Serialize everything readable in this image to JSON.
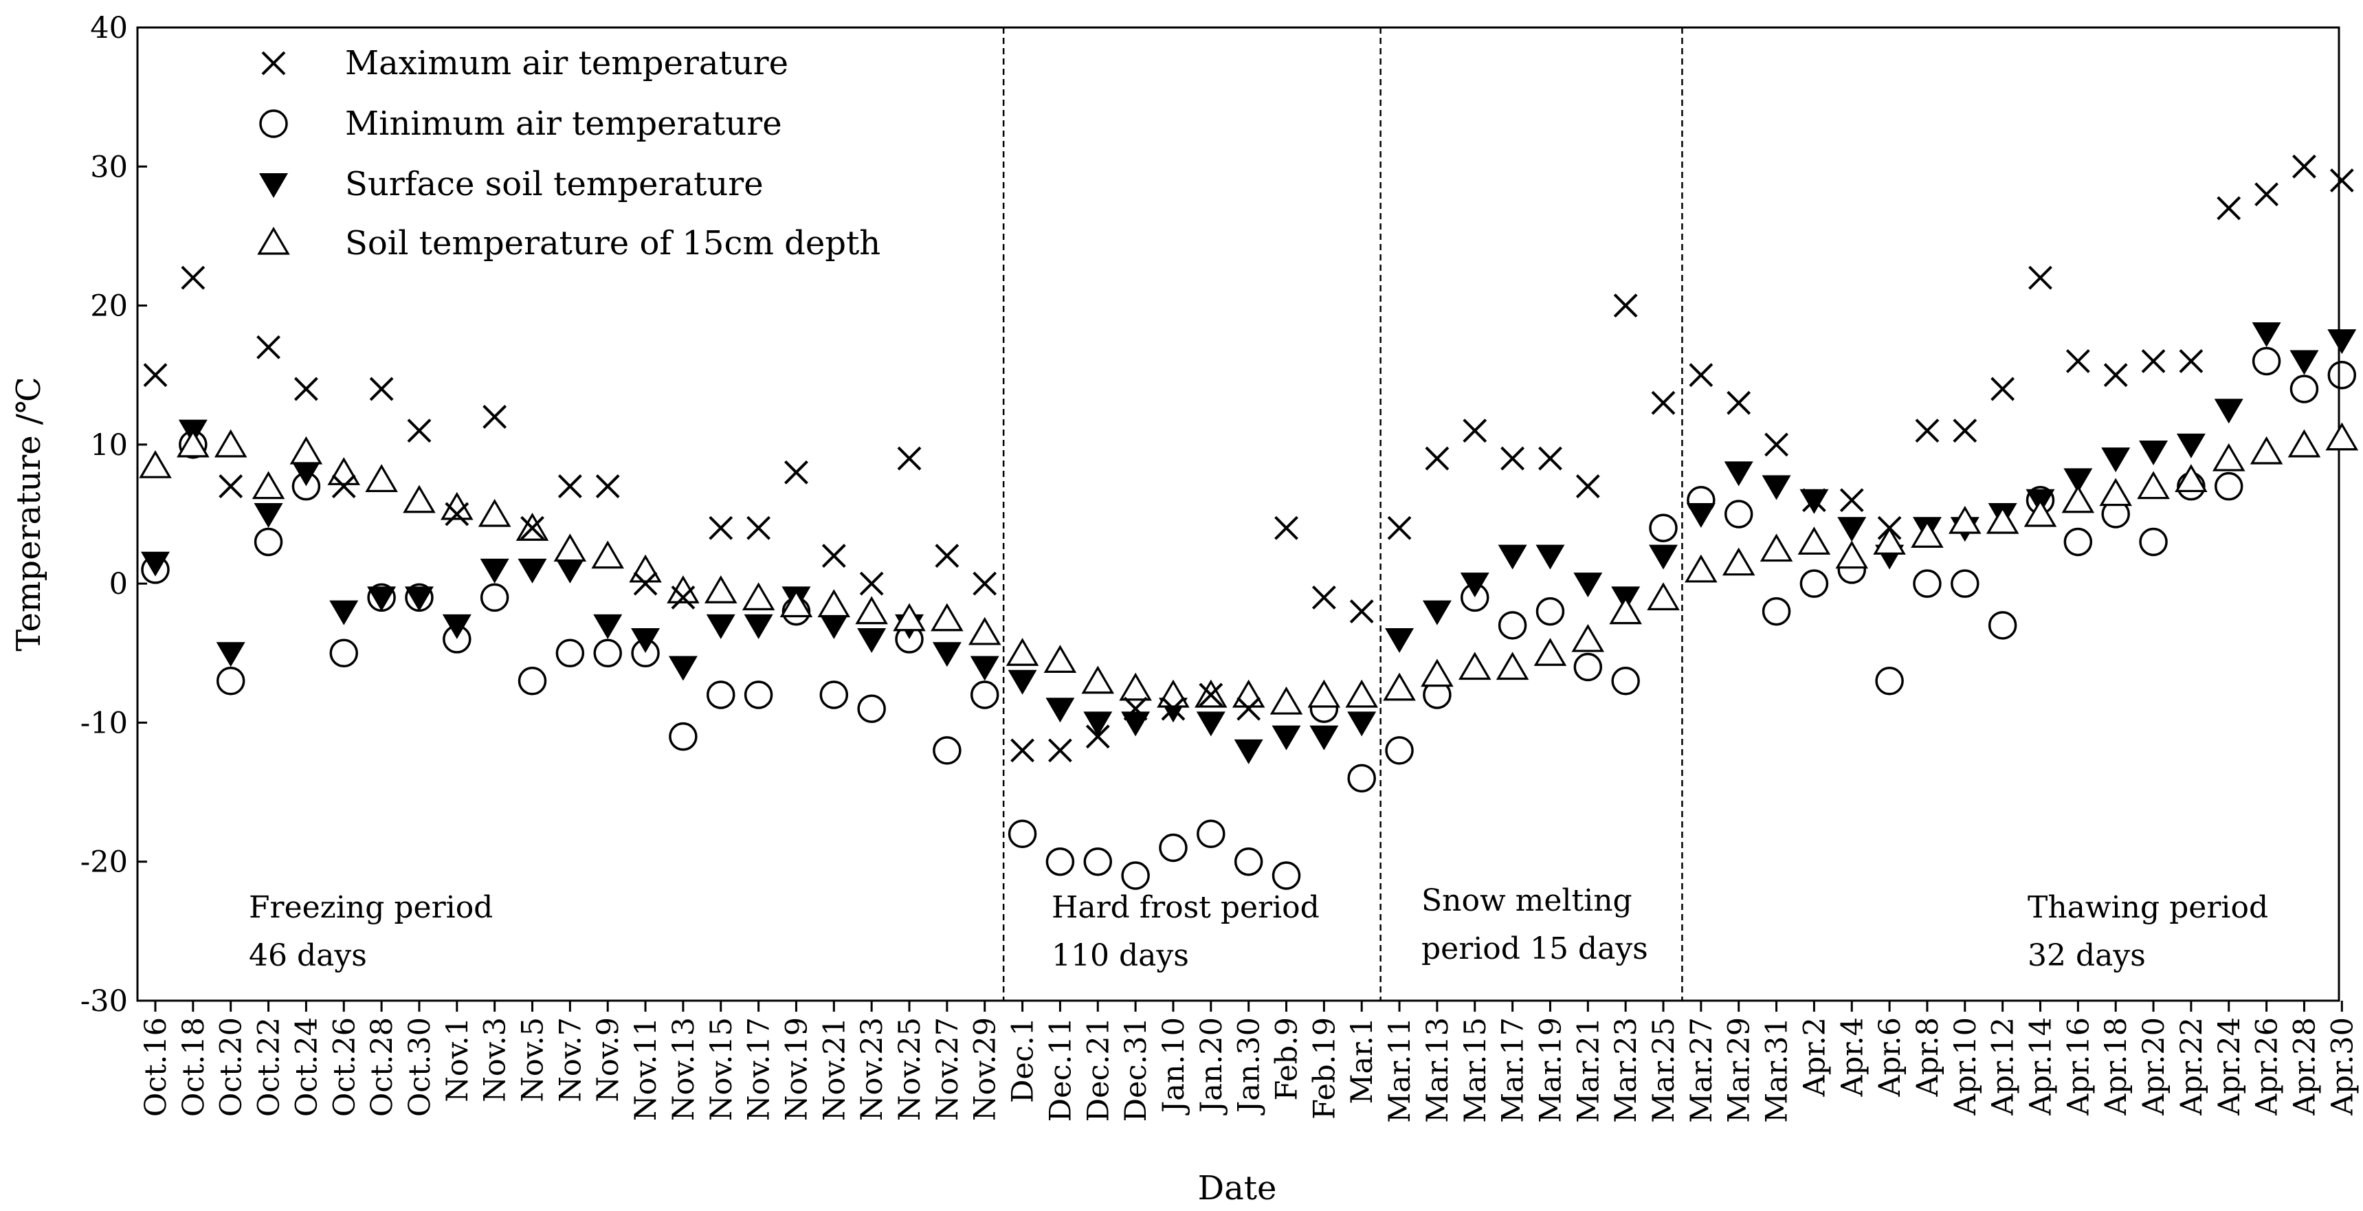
{
  "chart_data": {
    "type": "scatter",
    "xlabel": "Date",
    "ylabel": "Temperature /℃",
    "ylim": [
      -30,
      40
    ],
    "yticks": [
      -30,
      -20,
      -10,
      0,
      10,
      20,
      30,
      40
    ],
    "categories": [
      "Oct.16",
      "Oct.18",
      "Oct.20",
      "Oct.22",
      "Oct.24",
      "Oct.26",
      "Oct.28",
      "Oct.30",
      "Nov.1",
      "Nov.3",
      "Nov.5",
      "Nov.7",
      "Nov.9",
      "Nov.11",
      "Nov.13",
      "Nov.15",
      "Nov.17",
      "Nov.19",
      "Nov.21",
      "Nov.23",
      "Nov.25",
      "Nov.27",
      "Nov.29",
      "Dec.1",
      "Dec.11",
      "Dec.21",
      "Dec.31",
      "Jan.10",
      "Jan.20",
      "Jan.30",
      "Feb.9",
      "Feb.19",
      "Mar.1",
      "Mar.11",
      "Mar.13",
      "Mar.15",
      "Mar.17",
      "Mar.19",
      "Mar.21",
      "Mar.23",
      "Mar.25",
      "Mar.27",
      "Mar.29",
      "Mar.31",
      "Apr.2",
      "Apr.4",
      "Apr.6",
      "Apr.8",
      "Apr.10",
      "Apr.12",
      "Apr.14",
      "Apr.16",
      "Apr.18",
      "Apr.20",
      "Apr.22",
      "Apr.24",
      "Apr.26",
      "Apr.28",
      "Apr.30"
    ],
    "series": [
      {
        "name": "Maximum air temperature",
        "marker": "x",
        "values": [
          15,
          22,
          7,
          17,
          14,
          7,
          14,
          11,
          5,
          12,
          4,
          7,
          7,
          0,
          -1,
          4,
          4,
          8,
          2,
          0,
          9,
          2,
          0,
          -12,
          -12,
          -11,
          -9,
          -9,
          -8,
          -9,
          4,
          -1,
          -2,
          4,
          9,
          11,
          9,
          9,
          7,
          20,
          13,
          15,
          13,
          10,
          6,
          6,
          4,
          11,
          11,
          14,
          22,
          16,
          15,
          16,
          16,
          27,
          28,
          30,
          29
        ]
      },
      {
        "name": "Minimum air temperature",
        "marker": "circle",
        "values": [
          1,
          10,
          -7,
          3,
          7,
          -5,
          -1,
          -1,
          -4,
          -1,
          -7,
          -5,
          -5,
          -5,
          -11,
          -8,
          -8,
          -2,
          -8,
          -9,
          -4,
          -12,
          -8,
          -18,
          -20,
          -20,
          -21,
          -19,
          -18,
          -20,
          -21,
          -9,
          -14,
          -12,
          -8,
          -1,
          -3,
          -2,
          -6,
          -7,
          4,
          6,
          5,
          -2,
          0,
          1,
          -7,
          0,
          0,
          -3,
          6,
          3,
          5,
          3,
          7,
          7,
          16,
          14,
          15
        ]
      },
      {
        "name": "Surface soil temperature",
        "marker": "triangle-down-filled",
        "values": [
          1.5,
          11,
          -5,
          5,
          8,
          -2,
          -1,
          -1,
          -3,
          1,
          1,
          1,
          -3,
          -4,
          -6,
          -3,
          -3,
          -1,
          -3,
          -4,
          -3,
          -5,
          -6,
          -7,
          -9,
          -10,
          -10,
          -9,
          -10,
          -12,
          -11,
          -11,
          -10,
          -4,
          -2,
          0,
          2,
          2,
          0,
          -1,
          2,
          5,
          8,
          7,
          6,
          4,
          2,
          4,
          4,
          5,
          6,
          7.5,
          9,
          9.5,
          10,
          12.5,
          18,
          16,
          17.5
        ]
      },
      {
        "name": "Soil temperature of 15cm depth",
        "marker": "triangle-up-open",
        "values": [
          8.5,
          10,
          10,
          7,
          9.5,
          8,
          7.5,
          6,
          5.5,
          5,
          4,
          2.5,
          2,
          1,
          -0.5,
          -0.5,
          -1,
          -1.5,
          -1.5,
          -2,
          -2.5,
          -2.5,
          -3.5,
          -5,
          -5.5,
          -7,
          -7.5,
          -8,
          -8,
          -8,
          -8.5,
          -8,
          -8,
          -7.5,
          -6.5,
          -6,
          -6,
          -5,
          -4,
          -2,
          -1,
          1,
          1.5,
          2.5,
          3,
          2,
          3,
          3.5,
          4.5,
          4.5,
          5,
          6,
          6.5,
          7,
          7.5,
          9,
          9.5,
          10,
          10.5
        ]
      }
    ],
    "period_dividers_after": [
      "Nov.29",
      "Mar.1",
      "Mar.25"
    ],
    "legend_position": "top-left",
    "grid": false
  },
  "periods": [
    {
      "name": "Freezing period",
      "duration": "46 days"
    },
    {
      "name": "Hard frost period",
      "duration": "110 days"
    },
    {
      "name": "Snow melting",
      "duration": "period 15 days"
    },
    {
      "name": "Thawing period",
      "duration": "32 days"
    }
  ]
}
